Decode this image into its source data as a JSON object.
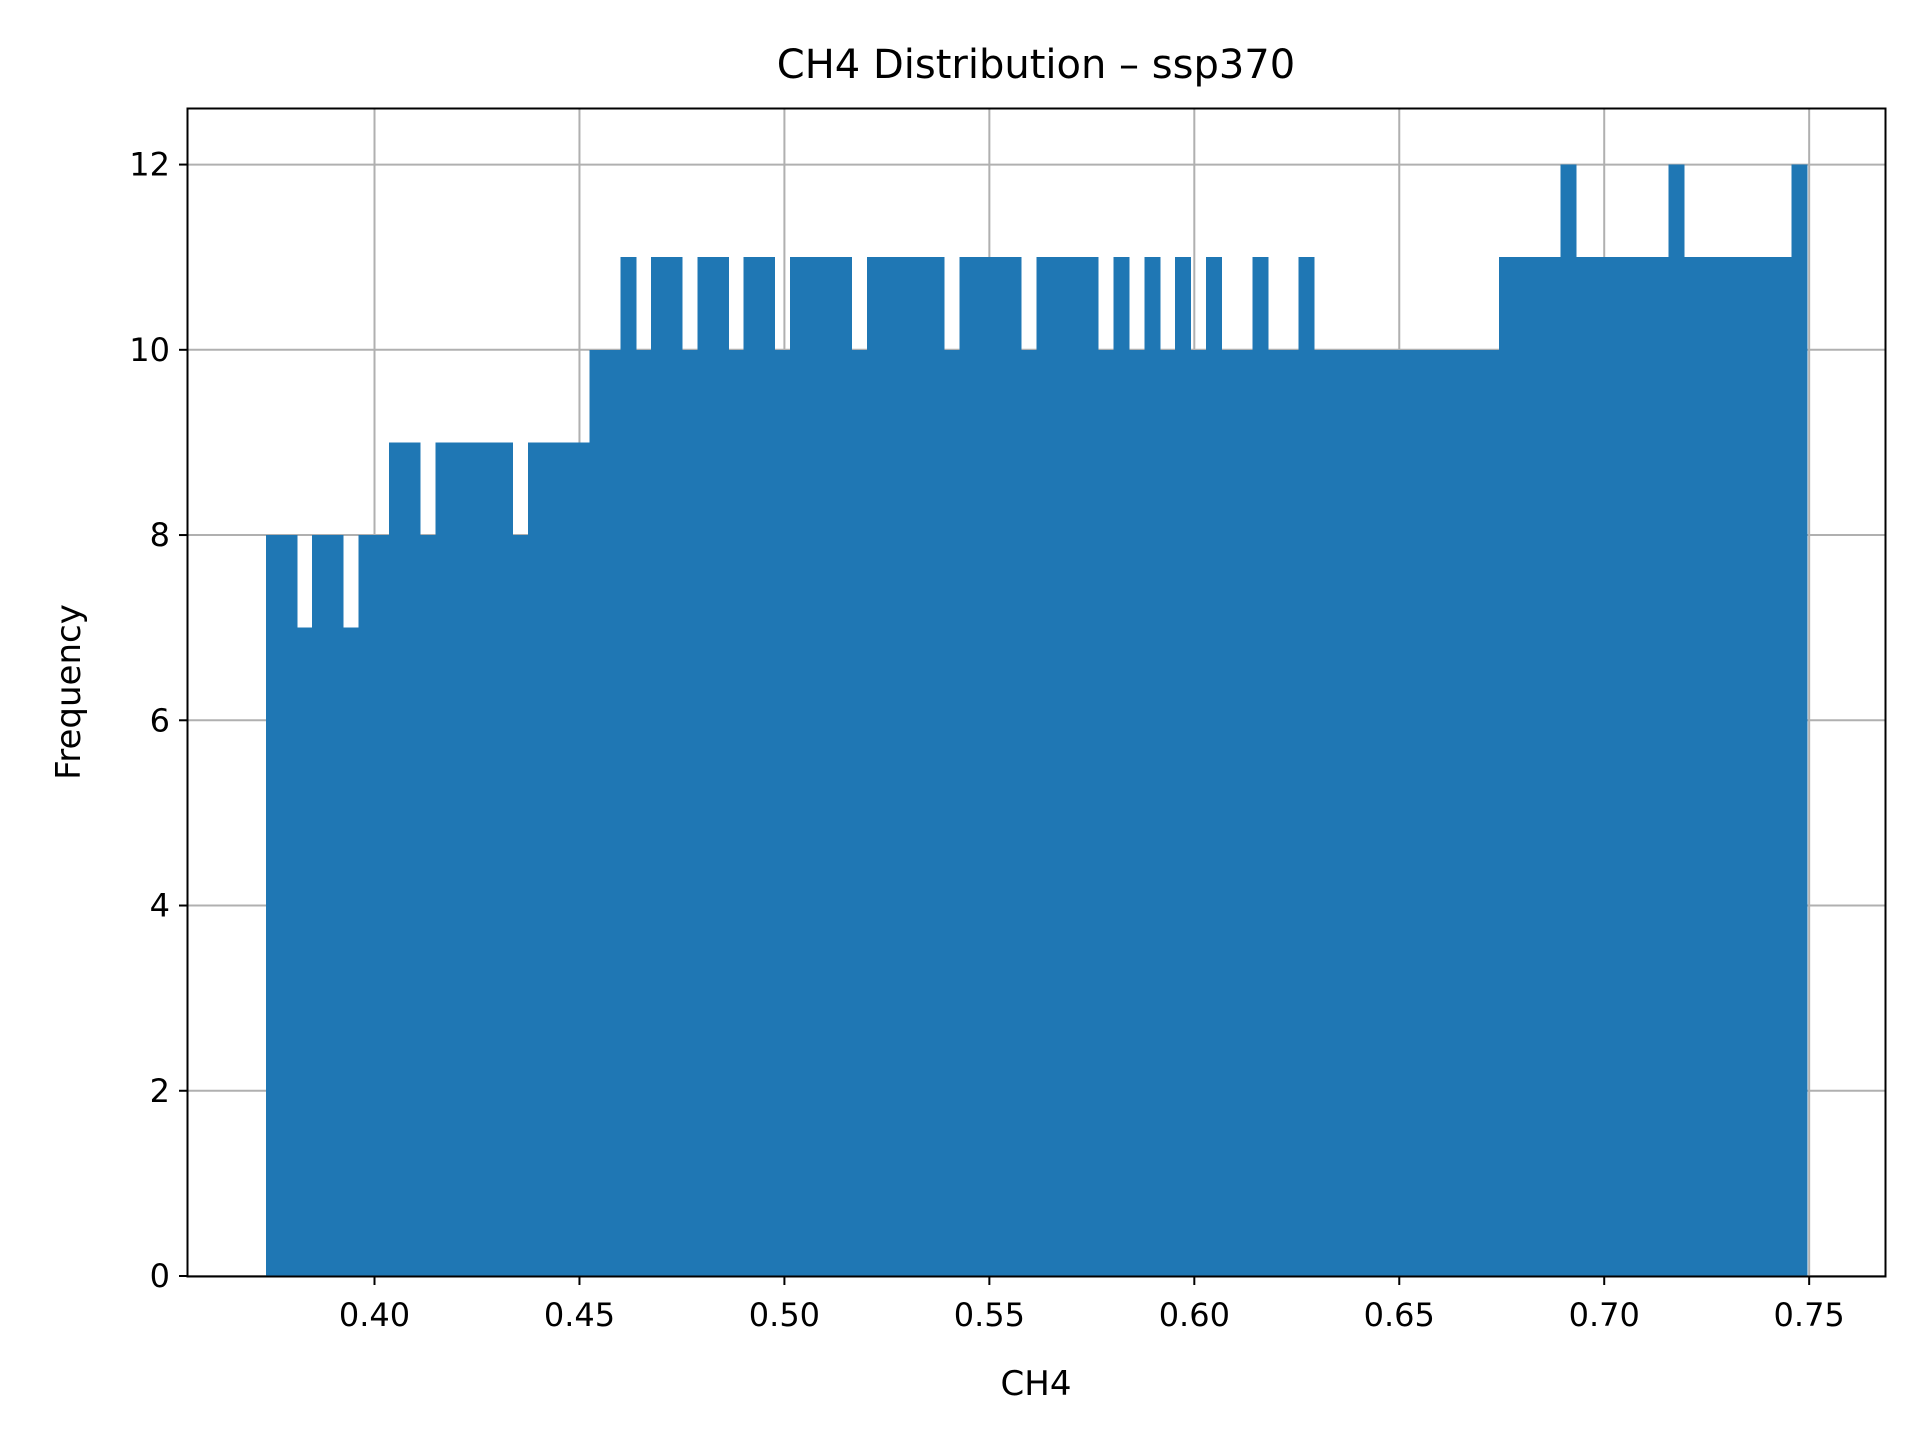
{
  "chart_data": {
    "type": "bar",
    "title": "CH4 Distribution – ssp370",
    "xlabel": "CH4",
    "ylabel": "Frequency",
    "xlim": [
      0.3545,
      0.7685
    ],
    "ylim": [
      0,
      12.6
    ],
    "xticks": [
      "0.40",
      "0.45",
      "0.50",
      "0.55",
      "0.60",
      "0.65",
      "0.70",
      "0.75"
    ],
    "yticks": [
      "0",
      "2",
      "4",
      "6",
      "8",
      "10",
      "12"
    ],
    "grid": true,
    "bin_range": [
      0.3735,
      0.7495
    ],
    "bin_count": 100,
    "values": [
      8,
      8,
      7,
      8,
      8,
      7,
      8,
      8,
      9,
      9,
      8,
      9,
      9,
      9,
      9,
      9,
      8,
      9,
      9,
      9,
      9,
      10,
      10,
      11,
      10,
      11,
      11,
      10,
      11,
      11,
      10,
      11,
      11,
      10,
      11,
      11,
      11,
      11,
      10,
      11,
      11,
      11,
      11,
      11,
      10,
      11,
      11,
      11,
      11,
      10,
      11,
      11,
      11,
      11,
      10,
      11,
      10,
      11,
      10,
      11,
      10,
      11,
      10,
      10,
      11,
      10,
      10,
      11,
      10,
      10,
      10,
      10,
      10,
      10,
      10,
      10,
      10,
      10,
      10,
      10,
      11,
      11,
      11,
      11,
      12,
      11,
      11,
      11,
      11,
      11,
      11,
      12,
      11,
      11,
      11,
      11,
      11,
      11,
      11,
      12
    ],
    "bar_color": "#1f77b4"
  }
}
